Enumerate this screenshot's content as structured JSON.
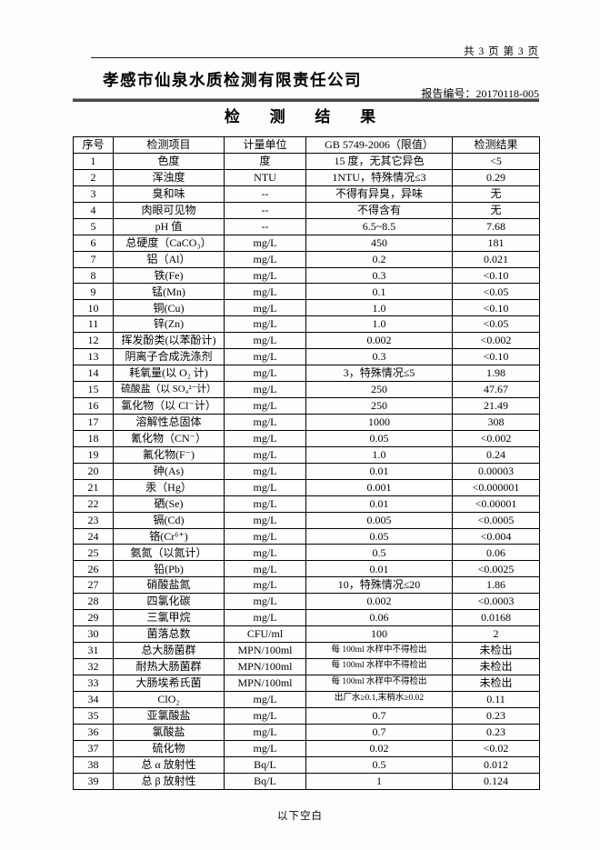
{
  "header": {
    "page_info": "共 3 页 第 3 页",
    "company": "孝感市仙泉水质检测有限责任公司",
    "report_no_label": "报告编号：",
    "report_no": "20170118-005",
    "title": "检 测 结 果"
  },
  "table": {
    "headers": [
      "序号",
      "检测项目",
      "计量单位",
      "GB 5749-2006（限值）",
      "检测结果"
    ],
    "rows": [
      [
        "1",
        "色度",
        "度",
        "15 度，无其它异色",
        "<5"
      ],
      [
        "2",
        "浑浊度",
        "NTU",
        "1NTU，特殊情况≤3",
        "0.29"
      ],
      [
        "3",
        "臭和味",
        "--",
        "不得有异臭，异味",
        "无"
      ],
      [
        "4",
        "肉眼可见物",
        "--",
        "不得含有",
        "无"
      ],
      [
        "5",
        "pH 值",
        "--",
        "6.5~8.5",
        "7.68"
      ],
      [
        "6",
        "总硬度（CaCO₃）",
        "mg/L",
        "450",
        "181"
      ],
      [
        "7",
        "铝（Al）",
        "mg/L",
        "0.2",
        "0.021"
      ],
      [
        "8",
        "铁(Fe)",
        "mg/L",
        "0.3",
        "<0.10"
      ],
      [
        "9",
        "锰(Mn)",
        "mg/L",
        "0.1",
        "<0.05"
      ],
      [
        "10",
        "铜(Cu)",
        "mg/L",
        "1.0",
        "<0.10"
      ],
      [
        "11",
        "锌(Zn)",
        "mg/L",
        "1.0",
        "<0.05"
      ],
      [
        "12",
        "挥发酚类(以苯酚计)",
        "mg/L",
        "0.002",
        "<0.002"
      ],
      [
        "13",
        "阴离子合成洗涤剂",
        "mg/L",
        "0.3",
        "<0.10"
      ],
      [
        "14",
        "耗氧量(以 O₂ 计)",
        "mg/L",
        "3，特殊情况≤5",
        "1.98"
      ],
      [
        "15",
        "硫酸盐（以 SO₄²⁻计）",
        "mg/L",
        "250",
        "47.67"
      ],
      [
        "16",
        "氯化物（以 Cl⁻计）",
        "mg/L",
        "250",
        "21.49"
      ],
      [
        "17",
        "溶解性总固体",
        "mg/L",
        "1000",
        "308"
      ],
      [
        "18",
        "氰化物（CN⁻）",
        "mg/L",
        "0.05",
        "<0.002"
      ],
      [
        "19",
        "氟化物(F⁻)",
        "mg/L",
        "1.0",
        "0.24"
      ],
      [
        "20",
        "砷(As)",
        "mg/L",
        "0.01",
        "0.00003"
      ],
      [
        "21",
        "汞（Hg）",
        "mg/L",
        "0.001",
        "<0.000001"
      ],
      [
        "22",
        "硒(Se)",
        "mg/L",
        "0.01",
        "<0.00001"
      ],
      [
        "23",
        "镉(Cd)",
        "mg/L",
        "0.005",
        "<0.0005"
      ],
      [
        "24",
        "铬(Cr⁶⁺)",
        "mg/L",
        "0.05",
        "<0.004"
      ],
      [
        "25",
        "氨氮（以氮计）",
        "mg/L",
        "0.5",
        "0.06"
      ],
      [
        "26",
        "铅(Pb)",
        "mg/L",
        "0.01",
        "<0.0025"
      ],
      [
        "27",
        "硝酸盐氮",
        "mg/L",
        "10，特殊情况≤20",
        "1.86"
      ],
      [
        "28",
        "四氯化碳",
        "mg/L",
        "0.002",
        "<0.0003"
      ],
      [
        "29",
        "三氯甲烷",
        "mg/L",
        "0.06",
        "0.0168"
      ],
      [
        "30",
        "菌落总数",
        "CFU/ml",
        "100",
        "2"
      ],
      [
        "31",
        "总大肠菌群",
        "MPN/100ml",
        "每 100ml 水样中不得检出",
        "未检出"
      ],
      [
        "32",
        "耐热大肠菌群",
        "MPN/100ml",
        "每 100ml 水样中不得检出",
        "未检出"
      ],
      [
        "33",
        "大肠埃希氏菌",
        "MPN/100ml",
        "每 100ml 水样中不得检出",
        "未检出"
      ],
      [
        "34",
        "ClO₂",
        "mg/L",
        "出厂水≥0.1,末梢水≥0.02",
        "0.11"
      ],
      [
        "35",
        "亚氯酸盐",
        "mg/L",
        "0.7",
        "0.23"
      ],
      [
        "36",
        "氯酸盐",
        "mg/L",
        "0.7",
        "0.23"
      ],
      [
        "37",
        "硫化物",
        "mg/L",
        "0.02",
        "<0.02"
      ],
      [
        "38",
        "总 α 放射性",
        "Bq/L",
        "0.5",
        "0.012"
      ],
      [
        "39",
        "总 β 放射性",
        "Bq/L",
        "1",
        "0.124"
      ]
    ]
  },
  "footer": {
    "note": "以下空白"
  }
}
